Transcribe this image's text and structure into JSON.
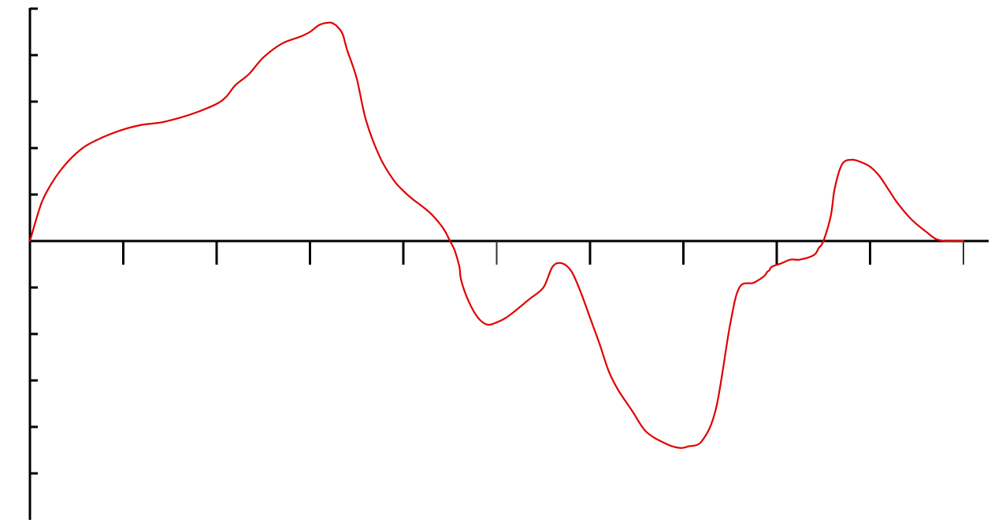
{
  "chart_data": {
    "type": "line",
    "title": "",
    "xlabel": "",
    "ylabel": "",
    "grid": false,
    "legend": "none",
    "xlim": [
      0,
      10
    ],
    "ylim": [
      -6,
      5
    ],
    "x_ticks": [
      0,
      1,
      2,
      3,
      4,
      5,
      6,
      7,
      8,
      9,
      10
    ],
    "y_ticks": [
      -5,
      -4,
      -3,
      -2,
      -1,
      0,
      1,
      2,
      3,
      4,
      5
    ],
    "series": [
      {
        "color": "#e00000",
        "x": [
          0,
          0.05,
          0.13,
          0.22,
          0.32,
          0.45,
          0.6,
          0.8,
          1.0,
          1.2,
          1.4,
          1.6,
          1.8,
          2.0,
          2.1,
          2.2,
          2.35,
          2.5,
          2.7,
          2.9,
          3.0,
          3.1,
          3.2,
          3.25,
          3.3,
          3.35,
          3.4,
          3.5,
          3.6,
          3.75,
          3.9,
          4.0,
          4.1,
          4.2,
          4.3,
          4.4,
          4.45,
          4.5,
          4.55,
          4.6,
          4.62,
          4.7,
          4.8,
          4.9,
          5.0,
          5.1,
          5.2,
          5.35,
          5.5,
          5.6,
          5.7,
          5.8,
          5.9,
          6.0,
          6.1,
          6.2,
          6.3,
          6.45,
          6.6,
          6.8,
          6.95,
          7.05,
          7.2,
          7.35,
          7.5,
          7.6,
          7.75,
          7.85,
          7.88,
          7.9,
          7.92,
          7.95,
          8.05,
          8.15,
          8.25,
          8.4,
          8.45,
          8.5,
          8.58,
          8.62,
          8.7,
          8.8,
          8.9,
          9.0,
          9.1,
          9.2,
          9.3,
          9.45,
          9.6,
          9.7,
          9.8,
          9.9,
          10.0
        ],
        "values": [
          0,
          0.35,
          0.85,
          1.2,
          1.5,
          1.8,
          2.05,
          2.25,
          2.4,
          2.5,
          2.55,
          2.65,
          2.78,
          2.95,
          3.1,
          3.35,
          3.6,
          3.95,
          4.25,
          4.4,
          4.5,
          4.65,
          4.7,
          4.68,
          4.6,
          4.45,
          4.1,
          3.5,
          2.6,
          1.8,
          1.3,
          1.08,
          0.9,
          0.75,
          0.58,
          0.35,
          0.2,
          0.0,
          -0.2,
          -0.55,
          -0.85,
          -1.3,
          -1.65,
          -1.8,
          -1.75,
          -1.65,
          -1.5,
          -1.25,
          -1.0,
          -0.55,
          -0.48,
          -0.65,
          -1.1,
          -1.65,
          -2.2,
          -2.8,
          -3.2,
          -3.65,
          -4.1,
          -4.35,
          -4.45,
          -4.42,
          -4.3,
          -3.6,
          -1.8,
          -1.0,
          -0.9,
          -0.78,
          -0.72,
          -0.66,
          -0.63,
          -0.55,
          -0.48,
          -0.4,
          -0.4,
          -0.3,
          -0.15,
          0.0,
          0.55,
          1.12,
          1.65,
          1.75,
          1.7,
          1.6,
          1.4,
          1.1,
          0.8,
          0.45,
          0.2,
          0.05,
          0,
          0,
          0
        ]
      }
    ]
  }
}
